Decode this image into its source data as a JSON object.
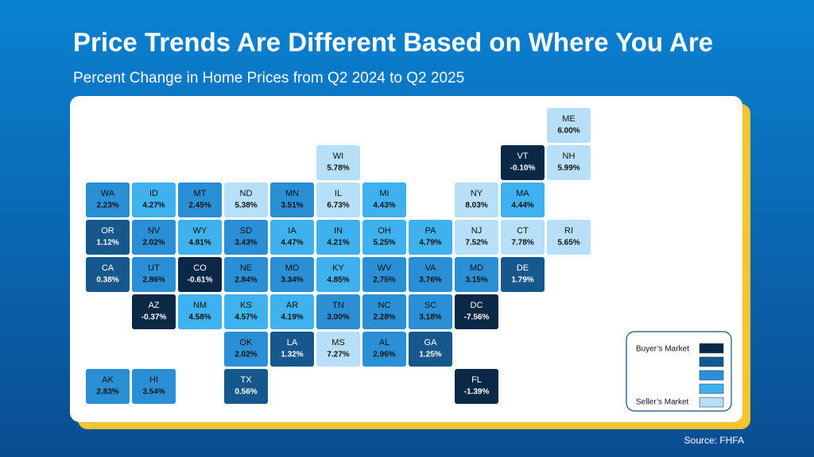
{
  "title": "Price Trends Are Different Based on Where You Are",
  "subtitle": "Percent Change in Home Prices from Q2 2024 to Q2 2025",
  "source": "Source: FHFA",
  "legend": {
    "top": "Buyer’s Market",
    "bottom": "Seller’s Market",
    "colors": [
      "#0b2946",
      "#16588c",
      "#2b8fd6",
      "#3fb1ef",
      "#b7dff8"
    ]
  },
  "states": [
    {
      "abbr": "ME",
      "label": "6.00%",
      "color": "#b7dff8"
    },
    {
      "abbr": "WI",
      "label": "5.78%",
      "color": "#b7dff8"
    },
    {
      "abbr": "VT",
      "label": "-0.10%",
      "color": "#0b2946"
    },
    {
      "abbr": "NH",
      "label": "5.99%",
      "color": "#b7dff8"
    },
    {
      "abbr": "WA",
      "label": "2.23%",
      "color": "#2b8fd6"
    },
    {
      "abbr": "ID",
      "label": "4.27%",
      "color": "#3fb1ef"
    },
    {
      "abbr": "MT",
      "label": "2.45%",
      "color": "#2b8fd6"
    },
    {
      "abbr": "ND",
      "label": "5.38%",
      "color": "#b7dff8"
    },
    {
      "abbr": "MN",
      "label": "3.51%",
      "color": "#2b8fd6"
    },
    {
      "abbr": "IL",
      "label": "6.73%",
      "color": "#b7dff8"
    },
    {
      "abbr": "MI",
      "label": "4.43%",
      "color": "#3fb1ef"
    },
    {
      "abbr": "NY",
      "label": "8.03%",
      "color": "#b7dff8"
    },
    {
      "abbr": "MA",
      "label": "4.44%",
      "color": "#3fb1ef"
    },
    {
      "abbr": "OR",
      "label": "1.12%",
      "color": "#16588c"
    },
    {
      "abbr": "NV",
      "label": "2.02%",
      "color": "#2b8fd6"
    },
    {
      "abbr": "WY",
      "label": "4.81%",
      "color": "#3fb1ef"
    },
    {
      "abbr": "SD",
      "label": "3.43%",
      "color": "#2b8fd6"
    },
    {
      "abbr": "IA",
      "label": "4.47%",
      "color": "#3fb1ef"
    },
    {
      "abbr": "IN",
      "label": "4.21%",
      "color": "#3fb1ef"
    },
    {
      "abbr": "OH",
      "label": "5.25%",
      "color": "#3fb1ef"
    },
    {
      "abbr": "PA",
      "label": "4.79%",
      "color": "#3fb1ef"
    },
    {
      "abbr": "NJ",
      "label": "7.52%",
      "color": "#b7dff8"
    },
    {
      "abbr": "CT",
      "label": "7.78%",
      "color": "#b7dff8"
    },
    {
      "abbr": "RI",
      "label": "5.65%",
      "color": "#b7dff8"
    },
    {
      "abbr": "CA",
      "label": "0.38%",
      "color": "#16588c"
    },
    {
      "abbr": "UT",
      "label": "2.86%",
      "color": "#2b8fd6"
    },
    {
      "abbr": "CO",
      "label": "-0.61%",
      "color": "#0b2946"
    },
    {
      "abbr": "NE",
      "label": "2.84%",
      "color": "#2b8fd6"
    },
    {
      "abbr": "MO",
      "label": "3.34%",
      "color": "#2b8fd6"
    },
    {
      "abbr": "KY",
      "label": "4.85%",
      "color": "#3fb1ef"
    },
    {
      "abbr": "WV",
      "label": "2.75%",
      "color": "#2b8fd6"
    },
    {
      "abbr": "VA",
      "label": "3.76%",
      "color": "#2b8fd6"
    },
    {
      "abbr": "MD",
      "label": "3.15%",
      "color": "#2b8fd6"
    },
    {
      "abbr": "DE",
      "label": "1.79%",
      "color": "#16588c"
    },
    {
      "abbr": "AZ",
      "label": "-0.37%",
      "color": "#0b2946"
    },
    {
      "abbr": "NM",
      "label": "4.58%",
      "color": "#3fb1ef"
    },
    {
      "abbr": "KS",
      "label": "4.57%",
      "color": "#3fb1ef"
    },
    {
      "abbr": "AR",
      "label": "4.19%",
      "color": "#3fb1ef"
    },
    {
      "abbr": "TN",
      "label": "3.00%",
      "color": "#2b8fd6"
    },
    {
      "abbr": "NC",
      "label": "2.28%",
      "color": "#2b8fd6"
    },
    {
      "abbr": "SC",
      "label": "3.18%",
      "color": "#2b8fd6"
    },
    {
      "abbr": "DC",
      "label": "-7.56%",
      "color": "#0b2946"
    },
    {
      "abbr": "OK",
      "label": "2.02%",
      "color": "#2b8fd6"
    },
    {
      "abbr": "LA",
      "label": "1.32%",
      "color": "#16588c"
    },
    {
      "abbr": "MS",
      "label": "7.27%",
      "color": "#b7dff8"
    },
    {
      "abbr": "AL",
      "label": "2.96%",
      "color": "#2b8fd6"
    },
    {
      "abbr": "GA",
      "label": "1.25%",
      "color": "#16588c"
    },
    {
      "abbr": "AK",
      "label": "2.83%",
      "color": "#2b8fd6"
    },
    {
      "abbr": "HI",
      "label": "3.54%",
      "color": "#2b8fd6"
    },
    {
      "abbr": "TX",
      "label": "0.56%",
      "color": "#16588c"
    },
    {
      "abbr": "FL",
      "label": "-1.39%",
      "color": "#0b2946"
    }
  ]
}
